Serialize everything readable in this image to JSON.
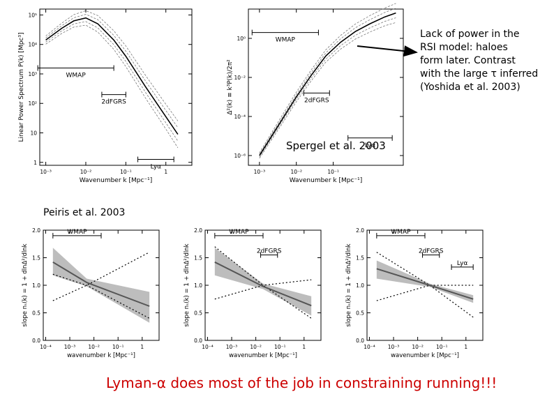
{
  "annotations": {
    "lack_power": {
      "line1": "Lack of power in the",
      "line2": "RSI model: haloes",
      "line3": "form later.  Contrast",
      "line4": "with the large τ inferred",
      "line5": "(Yoshida et al. 2003)"
    },
    "spergel": "Spergel et al. 2003",
    "peiris": "Peiris et al. 2003",
    "conclusion": "Lyman-α does most of the job in constraining running!!!"
  },
  "colors": {
    "accent": "#cc0000",
    "band": "#bdbdbd",
    "line": "#555555",
    "ink": "#000000"
  },
  "chart_data": [
    {
      "type": "line",
      "title": "",
      "xlabel": "Wavenumber k [Mpc⁻¹]",
      "ylabel": "Linear Power Spectrum P(k) [Mpc³]",
      "xlim": [
        -3.15,
        0.65
      ],
      "ylim": [
        -0.1,
        5.2
      ],
      "x_tick_labels": [
        "10⁻³",
        "10⁻²",
        "10⁻¹",
        "1"
      ],
      "x_tick_values": [
        -3,
        -2,
        -1,
        0
      ],
      "y_tick_labels": [
        "1",
        "10",
        "10²",
        "10³",
        "10⁴",
        "10⁵"
      ],
      "y_tick_values": [
        0,
        1,
        2,
        3,
        4,
        5
      ],
      "series": [
        {
          "name": "P(k)",
          "x": [
            -3.0,
            -2.6,
            -2.3,
            -2.0,
            -1.7,
            -1.3,
            -1.0,
            -0.5,
            0.0,
            0.3
          ],
          "y": [
            4.15,
            4.55,
            4.8,
            4.9,
            4.7,
            4.15,
            3.6,
            2.55,
            1.55,
            0.95
          ]
        }
      ],
      "ranges": [
        {
          "label": "WMAP",
          "x": [
            -3.2,
            -1.3
          ],
          "y": 3.2
        },
        {
          "label": "2dFGRS",
          "x": [
            -1.6,
            -1.0
          ],
          "y": 2.3
        },
        {
          "label": "Lyα",
          "x": [
            -0.7,
            0.2
          ],
          "y": 0.1
        }
      ]
    },
    {
      "type": "line",
      "title": "",
      "xlabel": "Wavenumber k [Mpc⁻¹]",
      "ylabel": "Δ²(k) ≡ k³P(k)/2π²",
      "xlim": [
        -3.3,
        0.9
      ],
      "ylim": [
        -6.5,
        1.5
      ],
      "x_tick_labels": [
        "10⁻³",
        "10⁻²",
        "10⁻¹"
      ],
      "x_tick_values": [
        -3,
        -2,
        -1
      ],
      "y_tick_labels": [
        "10⁰",
        "10⁻²",
        "10⁻⁴",
        "10⁻⁶"
      ],
      "y_tick_values": [
        0,
        -2,
        -4,
        -6
      ],
      "series": [
        {
          "name": "Δ²(k)",
          "x": [
            -3.0,
            -2.7,
            -2.4,
            -2.0,
            -1.6,
            -1.2,
            -0.8,
            -0.4,
            0.0,
            0.4,
            0.7
          ],
          "y": [
            -6.0,
            -5.1,
            -4.2,
            -3.0,
            -1.9,
            -0.9,
            -0.2,
            0.35,
            0.75,
            1.1,
            1.3
          ]
        }
      ],
      "ranges": [
        {
          "label": "WMAP",
          "x": [
            -3.2,
            -1.4
          ],
          "y": 0.3
        },
        {
          "label": "2dFGRS",
          "x": [
            -1.8,
            -1.1
          ],
          "y": -2.8
        },
        {
          "label": "Lyα",
          "x": [
            -0.6,
            0.6
          ],
          "y": -5.1
        }
      ]
    },
    {
      "type": "line",
      "title": "",
      "xlabel": "wavenumber k [Mpc⁻¹]",
      "ylabel": "slope nₛ(k) = 1 + dlnΔ²/dlnk",
      "xlim": [
        -4.1,
        0.7
      ],
      "ylim": [
        0,
        2
      ],
      "x_tick_labels": [
        "10⁻⁴",
        "10⁻³",
        "10⁻²",
        "10⁻¹",
        "1"
      ],
      "x_tick_values": [
        -4,
        -3,
        -2,
        -1,
        0
      ],
      "y_tick_labels": [
        "0.0",
        "0.5",
        "1.0",
        "1.5",
        "2.0"
      ],
      "y_tick_values": [
        0,
        0.5,
        1,
        1.5,
        2
      ],
      "series": [
        {
          "name": "best fit",
          "x": [
            -3.7,
            -2.3,
            0.3
          ],
          "y": [
            1.42,
            1.05,
            0.62
          ]
        },
        {
          "name": "band upper",
          "x": [
            -3.7,
            -2.3,
            0.3
          ],
          "y": [
            1.68,
            1.12,
            0.88
          ]
        },
        {
          "name": "band lower",
          "x": [
            -3.7,
            -2.3,
            0.3
          ],
          "y": [
            1.18,
            0.98,
            0.32
          ]
        },
        {
          "name": "prior upper",
          "x": [
            -3.7,
            -2.3,
            0.3
          ],
          "y": [
            1.2,
            1.0,
            0.4
          ]
        },
        {
          "name": "prior lower",
          "x": [
            -3.7,
            -2.3,
            0.3
          ],
          "y": [
            0.72,
            1.0,
            1.6
          ]
        }
      ],
      "ranges": [
        {
          "label": "WMAP",
          "x": [
            -3.7,
            -1.7
          ],
          "y": 1.9
        }
      ]
    },
    {
      "type": "line",
      "title": "",
      "xlabel": "wavenumber k [Mpc⁻¹]",
      "ylabel": "slope nₛ(k) = 1 + dlnΔ²/dlnk",
      "xlim": [
        -4.1,
        0.7
      ],
      "ylim": [
        0,
        2
      ],
      "x_tick_labels": [
        "10⁻⁴",
        "10⁻³",
        "10⁻²",
        "10⁻¹",
        "1"
      ],
      "x_tick_values": [
        -4,
        -3,
        -2,
        -1,
        0
      ],
      "y_tick_labels": [
        "0.0",
        "0.5",
        "1.0",
        "1.5",
        "2.0"
      ],
      "y_tick_values": [
        0,
        0.5,
        1,
        1.5,
        2
      ],
      "series": [
        {
          "name": "best fit",
          "x": [
            -3.7,
            -1.7,
            0.3
          ],
          "y": [
            1.42,
            0.98,
            0.63
          ]
        },
        {
          "name": "band upper",
          "x": [
            -3.7,
            -1.7,
            0.3
          ],
          "y": [
            1.68,
            1.03,
            0.8
          ]
        },
        {
          "name": "band lower",
          "x": [
            -3.7,
            -1.7,
            0.3
          ],
          "y": [
            1.18,
            0.93,
            0.45
          ]
        },
        {
          "name": "prior upper",
          "x": [
            -3.7,
            -1.7,
            0.3
          ],
          "y": [
            1.7,
            1.0,
            0.4
          ]
        },
        {
          "name": "prior lower",
          "x": [
            -3.7,
            -1.7,
            0.3
          ],
          "y": [
            0.75,
            1.0,
            1.1
          ]
        }
      ],
      "ranges": [
        {
          "label": "WMAP",
          "x": [
            -3.7,
            -1.7
          ],
          "y": 1.9
        },
        {
          "label": "2dFGRS",
          "x": [
            -1.8,
            -1.1
          ],
          "y": 1.55
        }
      ]
    },
    {
      "type": "line",
      "title": "",
      "xlabel": "wavenumber k [Mpc⁻¹]",
      "ylabel": "slope nₛ(k) = 1 + dlnΔ²/dlnk",
      "xlim": [
        -4.1,
        0.7
      ],
      "ylim": [
        0,
        2
      ],
      "x_tick_labels": [
        "10⁻⁴",
        "10⁻³",
        "10⁻²",
        "10⁻¹",
        "1"
      ],
      "x_tick_values": [
        -4,
        -3,
        -2,
        -1,
        0
      ],
      "y_tick_labels": [
        "0.0",
        "0.5",
        "1.0",
        "1.5",
        "2.0"
      ],
      "y_tick_values": [
        0,
        0.5,
        1,
        1.5,
        2
      ],
      "series": [
        {
          "name": "best fit",
          "x": [
            -3.7,
            -1.5,
            0.3
          ],
          "y": [
            1.3,
            1.0,
            0.75
          ]
        },
        {
          "name": "band upper",
          "x": [
            -3.7,
            -1.5,
            0.3
          ],
          "y": [
            1.45,
            1.03,
            0.82
          ]
        },
        {
          "name": "band lower",
          "x": [
            -3.7,
            -1.5,
            0.3
          ],
          "y": [
            1.12,
            0.97,
            0.68
          ]
        },
        {
          "name": "prior upper",
          "x": [
            -3.7,
            -1.5,
            0.3
          ],
          "y": [
            1.6,
            1.0,
            0.42
          ]
        },
        {
          "name": "prior lower",
          "x": [
            -3.7,
            -1.5,
            0.3
          ],
          "y": [
            0.72,
            1.0,
            1.0
          ]
        }
      ],
      "ranges": [
        {
          "label": "WMAP",
          "x": [
            -3.7,
            -1.7
          ],
          "y": 1.9
        },
        {
          "label": "2dFGRS",
          "x": [
            -1.8,
            -1.1
          ],
          "y": 1.55
        },
        {
          "label": "Lyα",
          "x": [
            -0.6,
            0.3
          ],
          "y": 1.33
        }
      ]
    }
  ]
}
